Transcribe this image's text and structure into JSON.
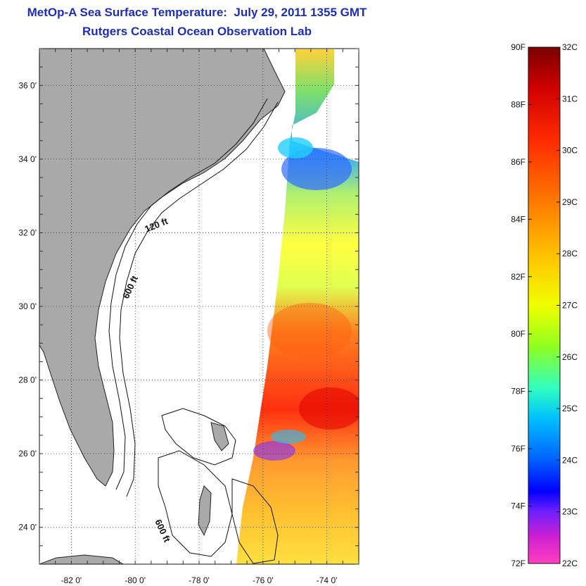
{
  "header": {
    "title": "MetOp-A Sea Surface Temperature:  July 29, 2011 1355 GMT",
    "subtitle": "Rutgers Coastal Ocean Observation Lab"
  },
  "map": {
    "lon_range": [
      -83,
      -73
    ],
    "lat_range": [
      23,
      37
    ],
    "lon_ticks": [
      {
        "value": -82,
        "label": "-82 0'"
      },
      {
        "value": -80,
        "label": "-80 0'"
      },
      {
        "value": -78,
        "label": "-78 0'"
      },
      {
        "value": -76,
        "label": "-76 0'"
      },
      {
        "value": -74,
        "label": "-74 0'"
      }
    ],
    "lat_ticks": [
      {
        "value": 36,
        "label": "36 0'"
      },
      {
        "value": 34,
        "label": "34 0'"
      },
      {
        "value": 32,
        "label": "32 0'"
      },
      {
        "value": 30,
        "label": "30 0'"
      },
      {
        "value": 28,
        "label": "28 0'"
      },
      {
        "value": 26,
        "label": "26 0'"
      },
      {
        "value": 24,
        "label": "24 0'"
      }
    ],
    "grid": true,
    "land_color": "#a9a9a9",
    "contour_labels": [
      "120 ft",
      "600 ft",
      "600 ft"
    ]
  },
  "colorbar": {
    "f_labels": [
      "90F",
      "88F",
      "86F",
      "84F",
      "82F",
      "80F",
      "78F",
      "76F",
      "74F",
      "72F"
    ],
    "c_labels": [
      "32C",
      "31C",
      "30C",
      "29C",
      "28C",
      "27C",
      "26C",
      "25C",
      "24C",
      "23C",
      "22C"
    ],
    "range_f": [
      72,
      90
    ],
    "range_c": [
      22,
      32
    ]
  }
}
